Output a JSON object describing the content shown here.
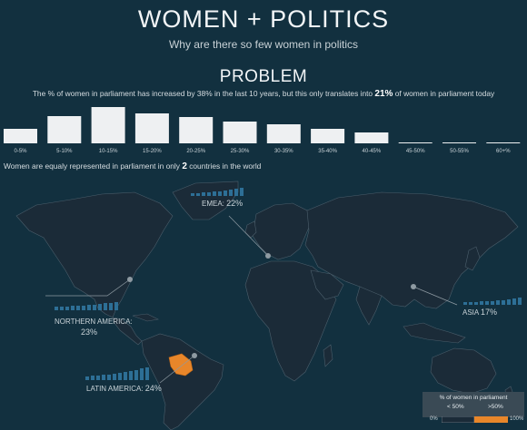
{
  "header": {
    "title": "WOMEN + POLITICS",
    "subtitle": "Why are there so few women in politics"
  },
  "section": {
    "title": "PROBLEM",
    "text_before": "The % of women in parliament has increased by 38% in the last 10 years, but this only translates into ",
    "highlight": "21%",
    "text_after": " of women in parliament today"
  },
  "chart_data": {
    "type": "bar",
    "categories": [
      "0-5%",
      "5-10%",
      "10-15%",
      "15-20%",
      "20-25%",
      "25-30%",
      "30-35%",
      "35-40%",
      "40-45%",
      "45-50%",
      "50-55%",
      "60+%"
    ],
    "values": [
      16,
      30,
      40,
      33,
      29,
      24,
      21,
      16,
      12,
      0.8,
      0.8,
      0.8
    ],
    "ylim": [
      0,
      42
    ],
    "bar_color": "#eef0f2"
  },
  "equality": {
    "text_before": "Women are equaly represented in parliament in only ",
    "count": "2",
    "text_after": " countries in the world"
  },
  "regions": {
    "emea": {
      "name": "EMEA",
      "pct": "22%"
    },
    "northern_america": {
      "name": "NORTHERN AMERICA:",
      "pct": "23%"
    },
    "asia": {
      "name": "ASIA",
      "pct": "17%"
    },
    "latin_america": {
      "name": "LATIN AMERICA:",
      "pct": "24%"
    }
  },
  "legend": {
    "title": "% of women in parliament",
    "low": "< 50%",
    "high": ">50%",
    "min": "0%",
    "max": "100%",
    "low_color": "#1b2b38",
    "high_color": "#e8862a"
  },
  "colors": {
    "background": "#12303f",
    "land": "#1b2b38",
    "highlight": "#e8862a",
    "accent_bar": "#2d6f96"
  }
}
